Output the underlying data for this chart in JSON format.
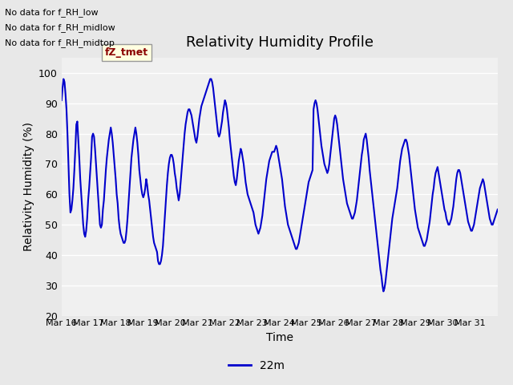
{
  "title": "Relativity Humidity Profile",
  "xlabel": "Time",
  "ylabel": "Relativity Humidity (%)",
  "ylim": [
    20,
    105
  ],
  "yticks": [
    20,
    30,
    40,
    50,
    60,
    70,
    80,
    90,
    100
  ],
  "line_color": "#0000CC",
  "line_width": 1.5,
  "bg_color": "#E8E8E8",
  "plot_bg_color": "#F0F0F0",
  "legend_label": "22m",
  "no_data_text1": "No data for f_RH_low",
  "no_data_text2": "No data for f_RH_midlow",
  "no_data_text3": "No data for f_RH_midtop",
  "tz_tmet_label": "fZ_tmet",
  "x_tick_labels": [
    "Mar 16",
    "Mar 17",
    "Mar 18",
    "Mar 19",
    "Mar 20",
    "Mar 21",
    "Mar 22",
    "Mar 23",
    "Mar 24",
    "Mar 25",
    "Mar 26",
    "Mar 27",
    "Mar 28",
    "Mar 29",
    "Mar 30",
    "Mar 31"
  ],
  "rh_values": [
    91,
    95,
    98,
    97,
    93,
    88,
    80,
    70,
    60,
    54,
    55,
    58,
    62,
    68,
    75,
    83,
    84,
    78,
    72,
    65,
    60,
    55,
    50,
    47,
    46,
    48,
    52,
    58,
    62,
    67,
    72,
    79,
    80,
    79,
    75,
    70,
    65,
    60,
    55,
    50,
    49,
    50,
    55,
    58,
    63,
    68,
    72,
    75,
    78,
    80,
    82,
    80,
    77,
    73,
    69,
    65,
    60,
    57,
    52,
    49,
    47,
    46,
    45,
    44,
    44,
    45,
    48,
    52,
    57,
    62,
    67,
    72,
    75,
    78,
    80,
    82,
    80,
    77,
    73,
    68,
    65,
    62,
    60,
    59,
    60,
    62,
    65,
    63,
    60,
    58,
    55,
    52,
    49,
    46,
    44,
    43,
    42,
    41,
    38,
    37,
    37,
    38,
    40,
    43,
    48,
    53,
    58,
    63,
    67,
    70,
    72,
    73,
    73,
    72,
    70,
    67,
    65,
    62,
    60,
    58,
    60,
    64,
    68,
    72,
    76,
    80,
    83,
    85,
    87,
    88,
    88,
    87,
    86,
    84,
    82,
    80,
    78,
    77,
    79,
    82,
    85,
    87,
    89,
    90,
    91,
    92,
    93,
    94,
    95,
    96,
    97,
    98,
    98,
    97,
    95,
    92,
    89,
    86,
    83,
    80,
    79,
    80,
    82,
    84,
    87,
    89,
    91,
    90,
    88,
    85,
    82,
    78,
    75,
    72,
    69,
    66,
    64,
    63,
    65,
    68,
    71,
    73,
    75,
    74,
    72,
    70,
    67,
    64,
    62,
    60,
    59,
    58,
    57,
    56,
    55,
    54,
    52,
    50,
    49,
    48,
    47,
    48,
    49,
    51,
    53,
    56,
    59,
    62,
    65,
    67,
    69,
    71,
    72,
    73,
    74,
    74,
    74,
    75,
    76,
    75,
    73,
    71,
    69,
    67,
    65,
    62,
    59,
    56,
    54,
    52,
    50,
    49,
    48,
    47,
    46,
    45,
    44,
    43,
    42,
    42,
    43,
    44,
    46,
    48,
    50,
    52,
    54,
    56,
    58,
    60,
    62,
    64,
    65,
    66,
    67,
    68,
    88,
    90,
    91,
    90,
    88,
    85,
    82,
    79,
    76,
    74,
    72,
    70,
    69,
    68,
    67,
    68,
    70,
    73,
    76,
    79,
    82,
    85,
    86,
    85,
    83,
    80,
    77,
    74,
    71,
    68,
    65,
    63,
    61,
    59,
    57,
    56,
    55,
    54,
    53,
    52,
    52,
    53,
    54,
    56,
    58,
    61,
    64,
    67,
    70,
    73,
    75,
    78,
    79,
    80,
    78,
    75,
    72,
    68,
    65,
    62,
    59,
    56,
    53,
    50,
    47,
    44,
    41,
    38,
    35,
    33,
    30,
    28,
    29,
    31,
    34,
    37,
    40,
    43,
    46,
    49,
    52,
    54,
    56,
    58,
    60,
    62,
    65,
    68,
    71,
    73,
    75,
    76,
    77,
    78,
    78,
    77,
    75,
    73,
    70,
    67,
    64,
    61,
    58,
    55,
    53,
    51,
    49,
    48,
    47,
    46,
    45,
    44,
    43,
    43,
    44,
    45,
    47,
    49,
    51,
    54,
    57,
    60,
    62,
    65,
    67,
    68,
    69,
    67,
    65,
    63,
    61,
    59,
    57,
    55,
    54,
    52,
    51,
    50,
    50,
    51,
    52,
    54,
    56,
    59,
    62,
    65,
    67,
    68,
    68,
    67,
    65,
    63,
    61,
    59,
    57,
    55,
    53,
    51,
    50,
    49,
    48,
    48,
    49,
    50,
    52,
    54,
    56,
    58,
    60,
    62,
    63,
    64,
    65,
    64,
    62,
    60,
    58,
    56,
    54,
    52,
    51,
    50,
    50,
    51,
    52,
    53,
    54,
    55
  ]
}
